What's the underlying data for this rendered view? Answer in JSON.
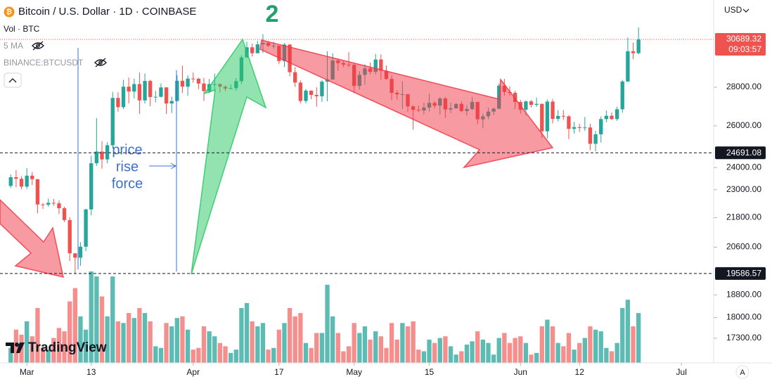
{
  "chart_data": {
    "type": "candlestick",
    "title": "Bitcoin / U.S. Dollar · 1D · COINBASE",
    "volume_label": "Vol · BTC",
    "indicators": [
      "5 MA",
      "BINANCE:BTCUSDT"
    ],
    "currency": "USD",
    "brand": "TradingView",
    "auto_scale": "A",
    "wave_label": "2",
    "annotation_text": [
      "price",
      "rise",
      "force"
    ],
    "log_scale": true,
    "grid": false,
    "up_color": "#26a69a",
    "down_color": "#ef5350",
    "ylim": [
      16500,
      33100
    ],
    "yticks": [
      {
        "value": 28000,
        "label": "28000.00"
      },
      {
        "value": 26000,
        "label": "26000.00"
      },
      {
        "value": 24000,
        "label": "24000.00"
      },
      {
        "value": 23000,
        "label": "23000.00"
      },
      {
        "value": 21800,
        "label": "21800.00"
      },
      {
        "value": 20600,
        "label": "20600.00"
      },
      {
        "value": 18800,
        "label": "18800.00"
      },
      {
        "value": 18000,
        "label": "18000.00"
      },
      {
        "value": 17300,
        "label": "17300.00"
      }
    ],
    "xlim": [
      "Feb 24",
      "Jul 7"
    ],
    "xticks": [
      {
        "value": "Mar 1",
        "label": "Mar"
      },
      {
        "value": "Mar 13",
        "label": "13"
      },
      {
        "value": "Apr 1",
        "label": "Apr"
      },
      {
        "value": "Apr 17",
        "label": "17"
      },
      {
        "value": "May 1",
        "label": "May"
      },
      {
        "value": "May 15",
        "label": "15"
      },
      {
        "value": "Jun 1",
        "label": "Jun"
      },
      {
        "value": "Jun 12",
        "label": "12"
      },
      {
        "value": "Jul 1",
        "label": "Jul"
      }
    ],
    "hlines": [
      24691.08,
      19586.57
    ],
    "last_price": 30689.32,
    "countdown": "09:03:57",
    "x": [
      "Feb 26",
      "Feb 27",
      "Feb 28",
      "Mar 1",
      "Mar 2",
      "Mar 3",
      "Mar 4",
      "Mar 5",
      "Mar 6",
      "Mar 7",
      "Mar 8",
      "Mar 9",
      "Mar 10",
      "Mar 11",
      "Mar 12",
      "Mar 13",
      "Mar 14",
      "Mar 15",
      "Mar 16",
      "Mar 17",
      "Mar 18",
      "Mar 19",
      "Mar 20",
      "Mar 21",
      "Mar 22",
      "Mar 23",
      "Mar 24",
      "Mar 25",
      "Mar 26",
      "Mar 27",
      "Mar 28",
      "Mar 29",
      "Mar 30",
      "Mar 31",
      "Apr 1",
      "Apr 2",
      "Apr 3",
      "Apr 4",
      "Apr 5",
      "Apr 6",
      "Apr 7",
      "Apr 8",
      "Apr 9",
      "Apr 10",
      "Apr 11",
      "Apr 12",
      "Apr 13",
      "Apr 14",
      "Apr 15",
      "Apr 16",
      "Apr 17",
      "Apr 18",
      "Apr 19",
      "Apr 20",
      "Apr 21",
      "Apr 22",
      "Apr 23",
      "Apr 24",
      "Apr 25",
      "Apr 26",
      "Apr 27",
      "Apr 28",
      "Apr 29",
      "Apr 30",
      "May 1",
      "May 2",
      "May 3",
      "May 4",
      "May 5",
      "May 6",
      "May 7",
      "May 8",
      "May 9",
      "May 10",
      "May 11",
      "May 12",
      "May 13",
      "May 14",
      "May 15",
      "May 16",
      "May 17",
      "May 18",
      "May 19",
      "May 20",
      "May 21",
      "May 22",
      "May 23",
      "May 24",
      "May 25",
      "May 26",
      "May 27",
      "May 28",
      "May 29",
      "May 30",
      "May 31",
      "Jun 1",
      "Jun 2",
      "Jun 3",
      "Jun 4",
      "Jun 5",
      "Jun 6",
      "Jun 7",
      "Jun 8",
      "Jun 9",
      "Jun 10",
      "Jun 11",
      "Jun 12",
      "Jun 13",
      "Jun 14",
      "Jun 15",
      "Jun 16",
      "Jun 17",
      "Jun 18",
      "Jun 19",
      "Jun 20",
      "Jun 21",
      "Jun 22",
      "Jun 23"
    ],
    "open": [
      23170,
      23560,
      23490,
      23140,
      23630,
      23470,
      22360,
      22350,
      22430,
      22410,
      22200,
      21700,
      20360,
      20190,
      20620,
      22150,
      24200,
      24750,
      24380,
      25050,
      27430,
      26950,
      28030,
      27770,
      28170,
      27300,
      28340,
      27480,
      27490,
      27990,
      27140,
      27270,
      28350,
      28030,
      28470,
      28460,
      28200,
      27790,
      28170,
      28170,
      28030,
      27920,
      27950,
      28330,
      29650,
      30230,
      29890,
      30400,
      30480,
      30320,
      30320,
      29440,
      30390,
      28820,
      28250,
      27270,
      27820,
      27590,
      27520,
      28300,
      28420,
      29470,
      29330,
      29240,
      29230,
      28070,
      28670,
      29030,
      28840,
      29530,
      28900,
      28450,
      27700,
      27620,
      27630,
      26990,
      26810,
      26780,
      26930,
      27170,
      27030,
      27400,
      26830,
      26890,
      27120,
      26750,
      26850,
      27220,
      26330,
      26480,
      26720,
      26870,
      28080,
      27750,
      27700,
      27220,
      26820,
      27250,
      27070,
      27120,
      25730,
      27240,
      26350,
      26500,
      26480,
      25850,
      25940,
      25900,
      25920,
      25120,
      25580,
      26340,
      26510,
      26340,
      26840,
      28310,
      30000,
      29890
    ],
    "high": [
      23690,
      23880,
      23600,
      23970,
      23790,
      23480,
      22420,
      22610,
      22600,
      22530,
      22270,
      21820,
      20370,
      20800,
      22180,
      24550,
      26390,
      25250,
      25200,
      27750,
      27730,
      28400,
      28530,
      28470,
      28800,
      28750,
      28400,
      27800,
      28200,
      28000,
      27500,
      28650,
      29180,
      28650,
      28800,
      28520,
      28500,
      28450,
      28750,
      28200,
      28100,
      28150,
      28500,
      29780,
      30550,
      30450,
      30600,
      31000,
      30600,
      30550,
      30320,
      30480,
      30410,
      29100,
      28370,
      27900,
      27820,
      28000,
      28390,
      30000,
      29880,
      29590,
      29450,
      29950,
      29330,
      28880,
      29260,
      29360,
      29850,
      29820,
      29190,
      28640,
      27830,
      28320,
      27640,
      27050,
      27040,
      27180,
      27650,
      27260,
      27480,
      27480,
      27180,
      27150,
      27250,
      27050,
      27480,
      27220,
      26620,
      26920,
      26930,
      28200,
      28450,
      28050,
      27820,
      27330,
      27300,
      27330,
      27450,
      27140,
      27350,
      27380,
      26800,
      26800,
      26540,
      26200,
      26100,
      26450,
      26100,
      25750,
      26480,
      26780,
      26680,
      26980,
      28400,
      30800,
      30500,
      31400
    ],
    "low": [
      23080,
      23110,
      23020,
      23040,
      23210,
      21980,
      22170,
      22270,
      22300,
      21950,
      21620,
      20060,
      19570,
      19880,
      20450,
      21900,
      24080,
      23950,
      24200,
      24900,
      26720,
      26850,
      27150,
      27400,
      26600,
      27140,
      27000,
      27200,
      27450,
      26600,
      26650,
      27250,
      27700,
      27550,
      28250,
      27900,
      27270,
      27680,
      27800,
      27720,
      27780,
      27880,
      27800,
      28170,
      29600,
      29700,
      29870,
      29900,
      30250,
      30150,
      29270,
      29100,
      28600,
      28020,
      27150,
      27150,
      27360,
      26970,
      27230,
      27250,
      28400,
      28900,
      29100,
      29100,
      27680,
      27880,
      28130,
      28700,
      28700,
      28400,
      28400,
      27320,
      27350,
      26860,
      26720,
      25810,
      26700,
      26590,
      26730,
      26880,
      26570,
      26400,
      26650,
      26850,
      26680,
      26520,
      26800,
      26080,
      25880,
      26330,
      26550,
      26850,
      27550,
      27550,
      26850,
      26620,
      26520,
      26930,
      26960,
      25400,
      25380,
      26120,
      26230,
      26300,
      25350,
      25620,
      25700,
      25750,
      24820,
      24770,
      25180,
      26180,
      26300,
      26250,
      26660,
      28280,
      29550,
      29820
    ],
    "close": [
      23560,
      23490,
      23140,
      23630,
      23470,
      22360,
      22350,
      22430,
      22410,
      22200,
      21700,
      20360,
      20190,
      20620,
      22150,
      24200,
      24750,
      24380,
      25050,
      27430,
      26950,
      28030,
      27770,
      28170,
      27300,
      28340,
      27480,
      27490,
      27990,
      27140,
      27270,
      28350,
      28030,
      28470,
      28460,
      28200,
      27790,
      28170,
      28170,
      28030,
      27920,
      27950,
      28330,
      29650,
      30230,
      29890,
      30400,
      30480,
      30320,
      30320,
      29440,
      30390,
      28820,
      28250,
      27270,
      27820,
      27590,
      27520,
      28300,
      28420,
      29470,
      29330,
      29240,
      29230,
      28070,
      28670,
      29030,
      28840,
      29530,
      28900,
      28450,
      27700,
      27620,
      27630,
      26990,
      26810,
      26780,
      26930,
      27170,
      27030,
      27400,
      26830,
      26890,
      27120,
      26750,
      26850,
      27220,
      26330,
      26480,
      26720,
      26870,
      28080,
      27750,
      27700,
      27220,
      26820,
      27250,
      27070,
      27120,
      25730,
      27240,
      26350,
      26500,
      26480,
      25850,
      25940,
      25900,
      25920,
      25120,
      25580,
      26340,
      26510,
      26340,
      26840,
      28310,
      30000,
      29890,
      30689.32
    ],
    "volume": [
      9000,
      20000,
      17000,
      25000,
      16000,
      33000,
      9000,
      8000,
      15000,
      21000,
      19000,
      37000,
      45000,
      28000,
      20000,
      55000,
      52000,
      40000,
      28000,
      52000,
      25000,
      24000,
      30000,
      27000,
      33000,
      30000,
      25000,
      10000,
      9000,
      24000,
      22000,
      27000,
      28000,
      20000,
      8000,
      9000,
      22000,
      19000,
      16000,
      12000,
      10000,
      6000,
      8000,
      33000,
      36000,
      25000,
      22000,
      24000,
      8000,
      9000,
      20000,
      24000,
      33000,
      28000,
      30000,
      12000,
      9000,
      18000,
      18000,
      47000,
      28000,
      18000,
      7000,
      10000,
      24000,
      18000,
      22000,
      14000,
      19000,
      16000,
      9000,
      24000,
      14000,
      24000,
      22000,
      25000,
      8000,
      7000,
      14000,
      12000,
      15000,
      16000,
      10000,
      5000,
      7000,
      11000,
      13000,
      19000,
      14000,
      12000,
      5000,
      15000,
      18000,
      12000,
      15000,
      16000,
      12000,
      5000,
      6000,
      22000,
      26000,
      22000,
      12000,
      10000,
      18000,
      8000,
      12000,
      15000,
      22000,
      20000,
      19000,
      9000,
      7000,
      12000,
      33000,
      38000,
      22000,
      30000
    ]
  }
}
